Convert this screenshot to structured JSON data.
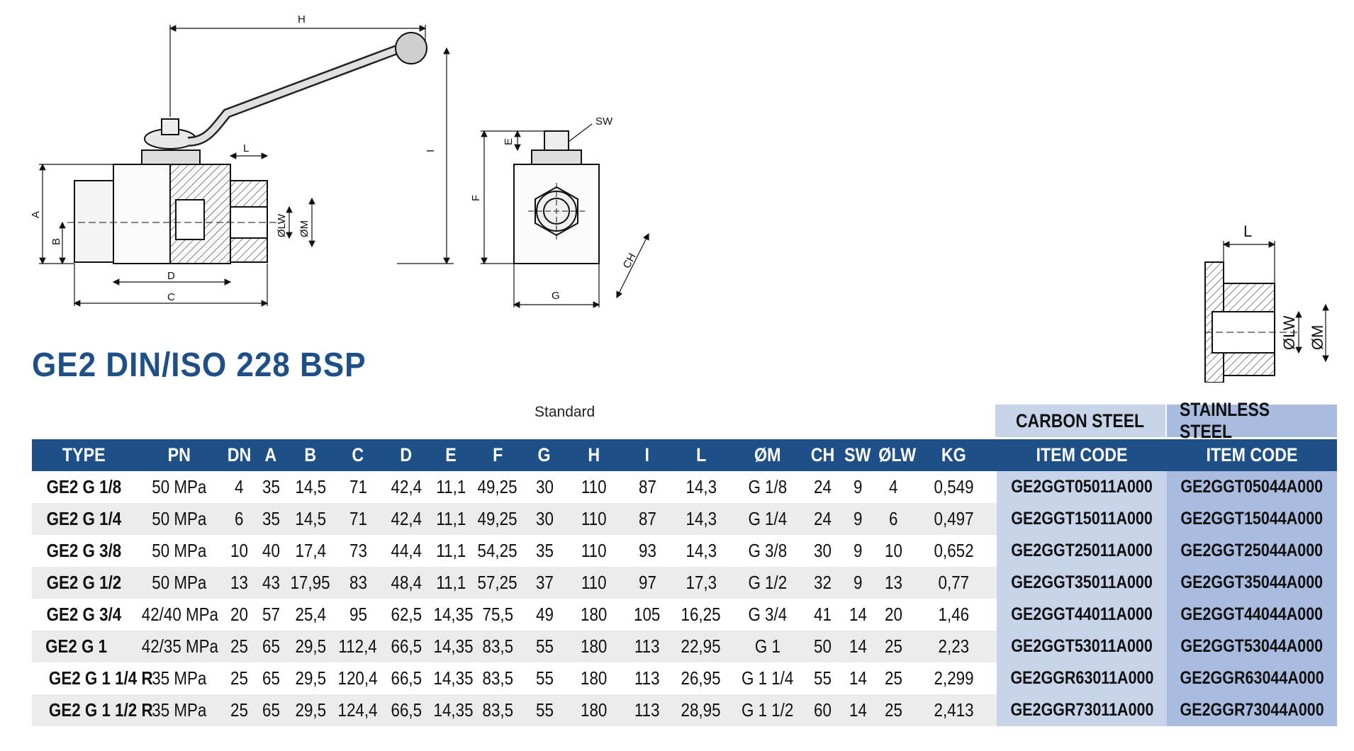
{
  "drawing": {
    "labels": {
      "h": "H",
      "i": "I",
      "a": "A",
      "b": "B",
      "d": "D",
      "c": "C",
      "l": "L",
      "lw": "ØLW",
      "m": "ØM",
      "sw": "SW",
      "e": "E",
      "f": "F",
      "g": "G",
      "ch": "CH"
    }
  },
  "title": "GE2 DIN/ISO 228 BSP",
  "standard_label": "Standard",
  "bands": {
    "carbon_steel": "CARBON STEEL",
    "stainless_steel": "STAINLESS STEEL"
  },
  "table": {
    "headers": [
      "TYPE",
      "PN",
      "DN",
      "A",
      "B",
      "C",
      "D",
      "E",
      "F",
      "G",
      "H",
      "I",
      "L",
      "ØM",
      "CH",
      "SW",
      "ØLW",
      "KG",
      "ITEM CODE",
      "ITEM CODE"
    ],
    "rows": [
      {
        "type": "GE2 G 1/8",
        "pn": "50 MPa",
        "dn": "4",
        "a": "35",
        "b": "14,5",
        "c": "71",
        "d": "42,4",
        "e": "11,1",
        "f": "49,25",
        "g": "30",
        "h": "110",
        "i": "87",
        "l": "14,3",
        "m": "G 1/8",
        "ch": "24",
        "sw": "9",
        "lw": "4",
        "kg": "0,549",
        "cs": "GE2GGT05011A000",
        "ss": "GE2GGT05044A000"
      },
      {
        "type": "GE2 G 1/4",
        "pn": "50 MPa",
        "dn": "6",
        "a": "35",
        "b": "14,5",
        "c": "71",
        "d": "42,4",
        "e": "11,1",
        "f": "49,25",
        "g": "30",
        "h": "110",
        "i": "87",
        "l": "14,3",
        "m": "G 1/4",
        "ch": "24",
        "sw": "9",
        "lw": "6",
        "kg": "0,497",
        "cs": "GE2GGT15011A000",
        "ss": "GE2GGT15044A000"
      },
      {
        "type": "GE2 G 3/8",
        "pn": "50 MPa",
        "dn": "10",
        "a": "40",
        "b": "17,4",
        "c": "73",
        "d": "44,4",
        "e": "11,1",
        "f": "54,25",
        "g": "35",
        "h": "110",
        "i": "93",
        "l": "14,3",
        "m": "G 3/8",
        "ch": "30",
        "sw": "9",
        "lw": "10",
        "kg": "0,652",
        "cs": "GE2GGT25011A000",
        "ss": "GE2GGT25044A000"
      },
      {
        "type": "GE2 G 1/2",
        "pn": "50 MPa",
        "dn": "13",
        "a": "43",
        "b": "17,95",
        "c": "83",
        "d": "48,4",
        "e": "11,1",
        "f": "57,25",
        "g": "37",
        "h": "110",
        "i": "97",
        "l": "17,3",
        "m": "G 1/2",
        "ch": "32",
        "sw": "9",
        "lw": "13",
        "kg": "0,77",
        "cs": "GE2GGT35011A000",
        "ss": "GE2GGT35044A000"
      },
      {
        "type": "GE2 G 3/4",
        "pn": "42/40 MPa",
        "dn": "20",
        "a": "57",
        "b": "25,4",
        "c": "95",
        "d": "62,5",
        "e": "14,35",
        "f": "75,5",
        "g": "49",
        "h": "180",
        "i": "105",
        "l": "16,25",
        "m": "G 3/4",
        "ch": "41",
        "sw": "14",
        "lw": "20",
        "kg": "1,46",
        "cs": "GE2GGT44011A000",
        "ss": "GE2GGT44044A000"
      },
      {
        "type": "GE2 G 1",
        "pn": "42/35 MPa",
        "dn": "25",
        "a": "65",
        "b": "29,5",
        "c": "112,4",
        "d": "66,5",
        "e": "14,35",
        "f": "83,5",
        "g": "55",
        "h": "180",
        "i": "113",
        "l": "22,95",
        "m": "G 1",
        "ch": "50",
        "sw": "14",
        "lw": "25",
        "kg": "2,23",
        "cs": "GE2GGT53011A000",
        "ss": "GE2GGT53044A000"
      },
      {
        "type": "GE2 G 1 1/4 R",
        "pn": "35 MPa",
        "dn": "25",
        "a": "65",
        "b": "29,5",
        "c": "120,4",
        "d": "66,5",
        "e": "14,35",
        "f": "83,5",
        "g": "55",
        "h": "180",
        "i": "113",
        "l": "26,95",
        "m": "G 1 1/4",
        "ch": "55",
        "sw": "14",
        "lw": "25",
        "kg": "2,299",
        "cs": "GE2GGR63011A000",
        "ss": "GE2GGR63044A000"
      },
      {
        "type": "GE2 G 1 1/2 R",
        "pn": "35 MPa",
        "dn": "25",
        "a": "65",
        "b": "29,5",
        "c": "124,4",
        "d": "66,5",
        "e": "14,35",
        "f": "83,5",
        "g": "55",
        "h": "180",
        "i": "113",
        "l": "28,95",
        "m": "G 1 1/2",
        "ch": "60",
        "sw": "14",
        "lw": "25",
        "kg": "2,413",
        "cs": "GE2GGR73011A000",
        "ss": "GE2GGR73044A000"
      }
    ]
  }
}
